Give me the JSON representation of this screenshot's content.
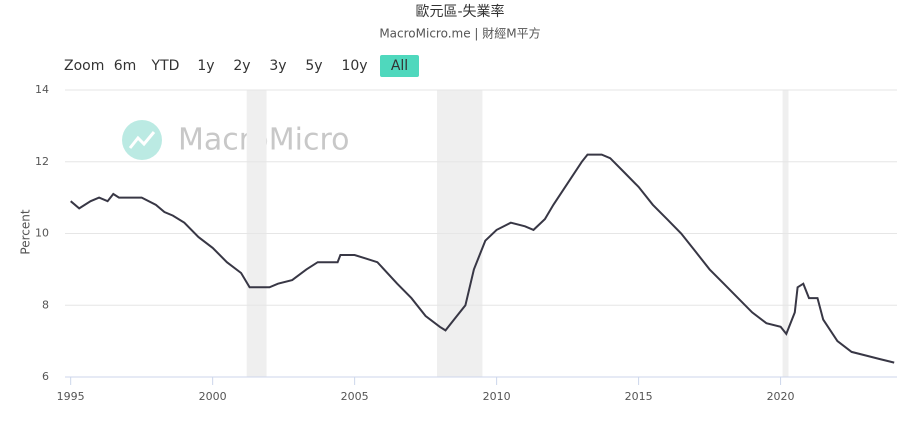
{
  "chart_data": {
    "type": "line",
    "title": "歐元區-失業率",
    "subtitle": "MacroMicro.me | 財經M平方",
    "watermark": "MacroMicro",
    "y_label": "Percent",
    "zoom_label": "Zoom",
    "zoom_buttons": [
      "6m",
      "YTD",
      "1y",
      "2y",
      "3y",
      "5y",
      "10y",
      "All"
    ],
    "active_button": "All",
    "shaded_ranges": [
      [
        2001.2,
        2001.9
      ],
      [
        2007.9,
        2009.5
      ],
      [
        2020.07,
        2020.28
      ]
    ],
    "xlim": [
      1994.8,
      2024.1
    ],
    "xticks": [
      1995,
      2000,
      2005,
      2010,
      2015,
      2020
    ],
    "ylim": [
      6,
      14
    ],
    "yticks": [
      6,
      8,
      10,
      12,
      14
    ],
    "grid": true,
    "x": [
      1995.0,
      1995.3,
      1995.7,
      1996.0,
      1996.3,
      1996.5,
      1996.7,
      1997.0,
      1997.5,
      1998.0,
      1998.3,
      1998.6,
      1999.0,
      1999.5,
      2000.0,
      2000.5,
      2001.0,
      2001.3,
      2002.0,
      2002.3,
      2002.8,
      2003.3,
      2003.7,
      2004.0,
      2004.4,
      2004.5,
      2005.0,
      2005.4,
      2005.8,
      2006.5,
      2007.0,
      2007.5,
      2008.0,
      2008.2,
      2008.5,
      2008.9,
      2009.2,
      2009.6,
      2010.0,
      2010.5,
      2011.0,
      2011.3,
      2011.7,
      2012.0,
      2012.5,
      2013.0,
      2013.2,
      2013.7,
      2014.0,
      2014.5,
      2015.0,
      2015.5,
      2016.0,
      2016.5,
      2017.0,
      2017.5,
      2018.0,
      2018.5,
      2019.0,
      2019.5,
      2020.0,
      2020.2,
      2020.5,
      2020.6,
      2020.8,
      2021.0,
      2021.3,
      2021.5,
      2022.0,
      2022.5,
      2023.0,
      2023.5,
      2024.0
    ],
    "series": [
      {
        "name": "歐元區-失業率",
        "color": "#383745",
        "values": [
          10.9,
          10.7,
          10.9,
          11.0,
          10.9,
          11.1,
          11.0,
          11.0,
          11.0,
          10.8,
          10.6,
          10.5,
          10.3,
          9.9,
          9.6,
          9.2,
          8.9,
          8.5,
          8.5,
          8.6,
          8.7,
          9.0,
          9.2,
          9.2,
          9.2,
          9.4,
          9.4,
          9.3,
          9.2,
          8.6,
          8.2,
          7.7,
          7.4,
          7.3,
          7.6,
          8.0,
          9.0,
          9.8,
          10.1,
          10.3,
          10.2,
          10.1,
          10.4,
          10.8,
          11.4,
          12.0,
          12.2,
          12.2,
          12.1,
          11.7,
          11.3,
          10.8,
          10.4,
          10.0,
          9.5,
          9.0,
          8.6,
          8.2,
          7.8,
          7.5,
          7.4,
          7.2,
          7.8,
          8.5,
          8.6,
          8.2,
          8.2,
          7.6,
          7.0,
          6.7,
          6.6,
          6.5,
          6.4
        ]
      }
    ]
  }
}
